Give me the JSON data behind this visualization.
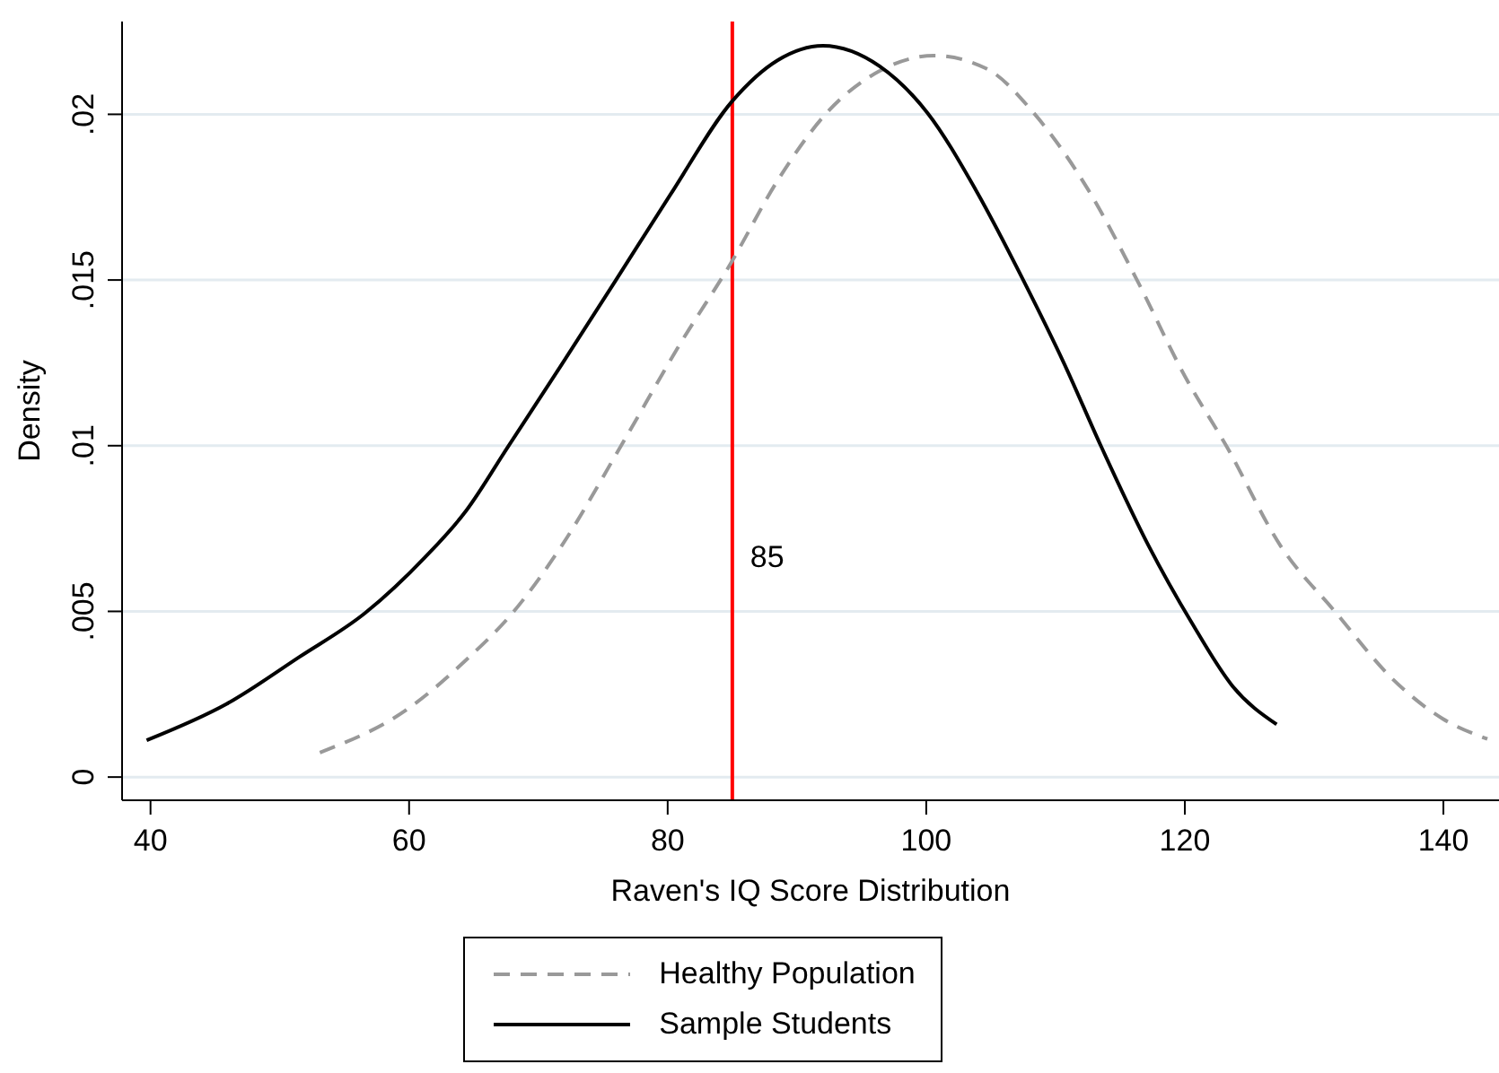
{
  "chart_data": {
    "type": "line",
    "xlabel": "Raven's IQ Score Distribution",
    "ylabel": "Density",
    "xlim": [
      37.8,
      144.3
    ],
    "xticks": [
      40,
      60,
      80,
      100,
      120,
      140
    ],
    "ylim": [
      -0.0007,
      0.0228
    ],
    "yticks": [
      0,
      {
        "value": 0.005,
        "label": ".005"
      },
      {
        "value": 0.01,
        "label": ".01"
      },
      {
        "value": 0.015,
        "label": ".015"
      },
      {
        "value": 0.02,
        "label": ".02"
      }
    ],
    "grid": "y",
    "legend": "bottom",
    "ref_lines": [
      {
        "axis": "x",
        "value": 85,
        "label": "85",
        "color": "#ff0000"
      }
    ],
    "series": [
      {
        "name": "Healthy Population",
        "color": "#999999",
        "line_style": "dashed",
        "x": [
          53.1,
          59.8,
          64.4,
          68.1,
          71.8,
          76.4,
          81.1,
          84.8,
          88.5,
          92.2,
          96.4,
          100.6,
          104.7,
          108.4,
          112.5,
          116.3,
          120,
          123.2,
          127.4,
          131.6,
          136.2,
          139.9,
          143.4
        ],
        "values": [
          0.00074,
          0.00203,
          0.00353,
          0.005,
          0.00698,
          0.01,
          0.01316,
          0.01545,
          0.018,
          0.02,
          0.02131,
          0.02177,
          0.02137,
          0.02,
          0.01774,
          0.015,
          0.0121,
          0.01,
          0.00698,
          0.005,
          0.00291,
          0.00177,
          0.00115
        ]
      },
      {
        "name": "Sample Students",
        "color": "#000000",
        "line_style": "solid",
        "x": [
          39.7,
          45.9,
          51.5,
          56.6,
          61.2,
          64.4,
          67.7,
          71.8,
          76,
          80.2,
          85,
          88.5,
          92,
          96.4,
          100.1,
          103.8,
          107.5,
          110.7,
          113.5,
          117.2,
          120.5,
          123.7,
          127.1
        ],
        "values": [
          0.00111,
          0.00221,
          0.00362,
          0.00495,
          0.00662,
          0.00803,
          0.01,
          0.01245,
          0.015,
          0.01757,
          0.0204,
          0.02163,
          0.02207,
          0.02145,
          0.02004,
          0.01774,
          0.015,
          0.01245,
          0.01,
          0.00698,
          0.00468,
          0.00274,
          0.00159
        ]
      }
    ]
  }
}
